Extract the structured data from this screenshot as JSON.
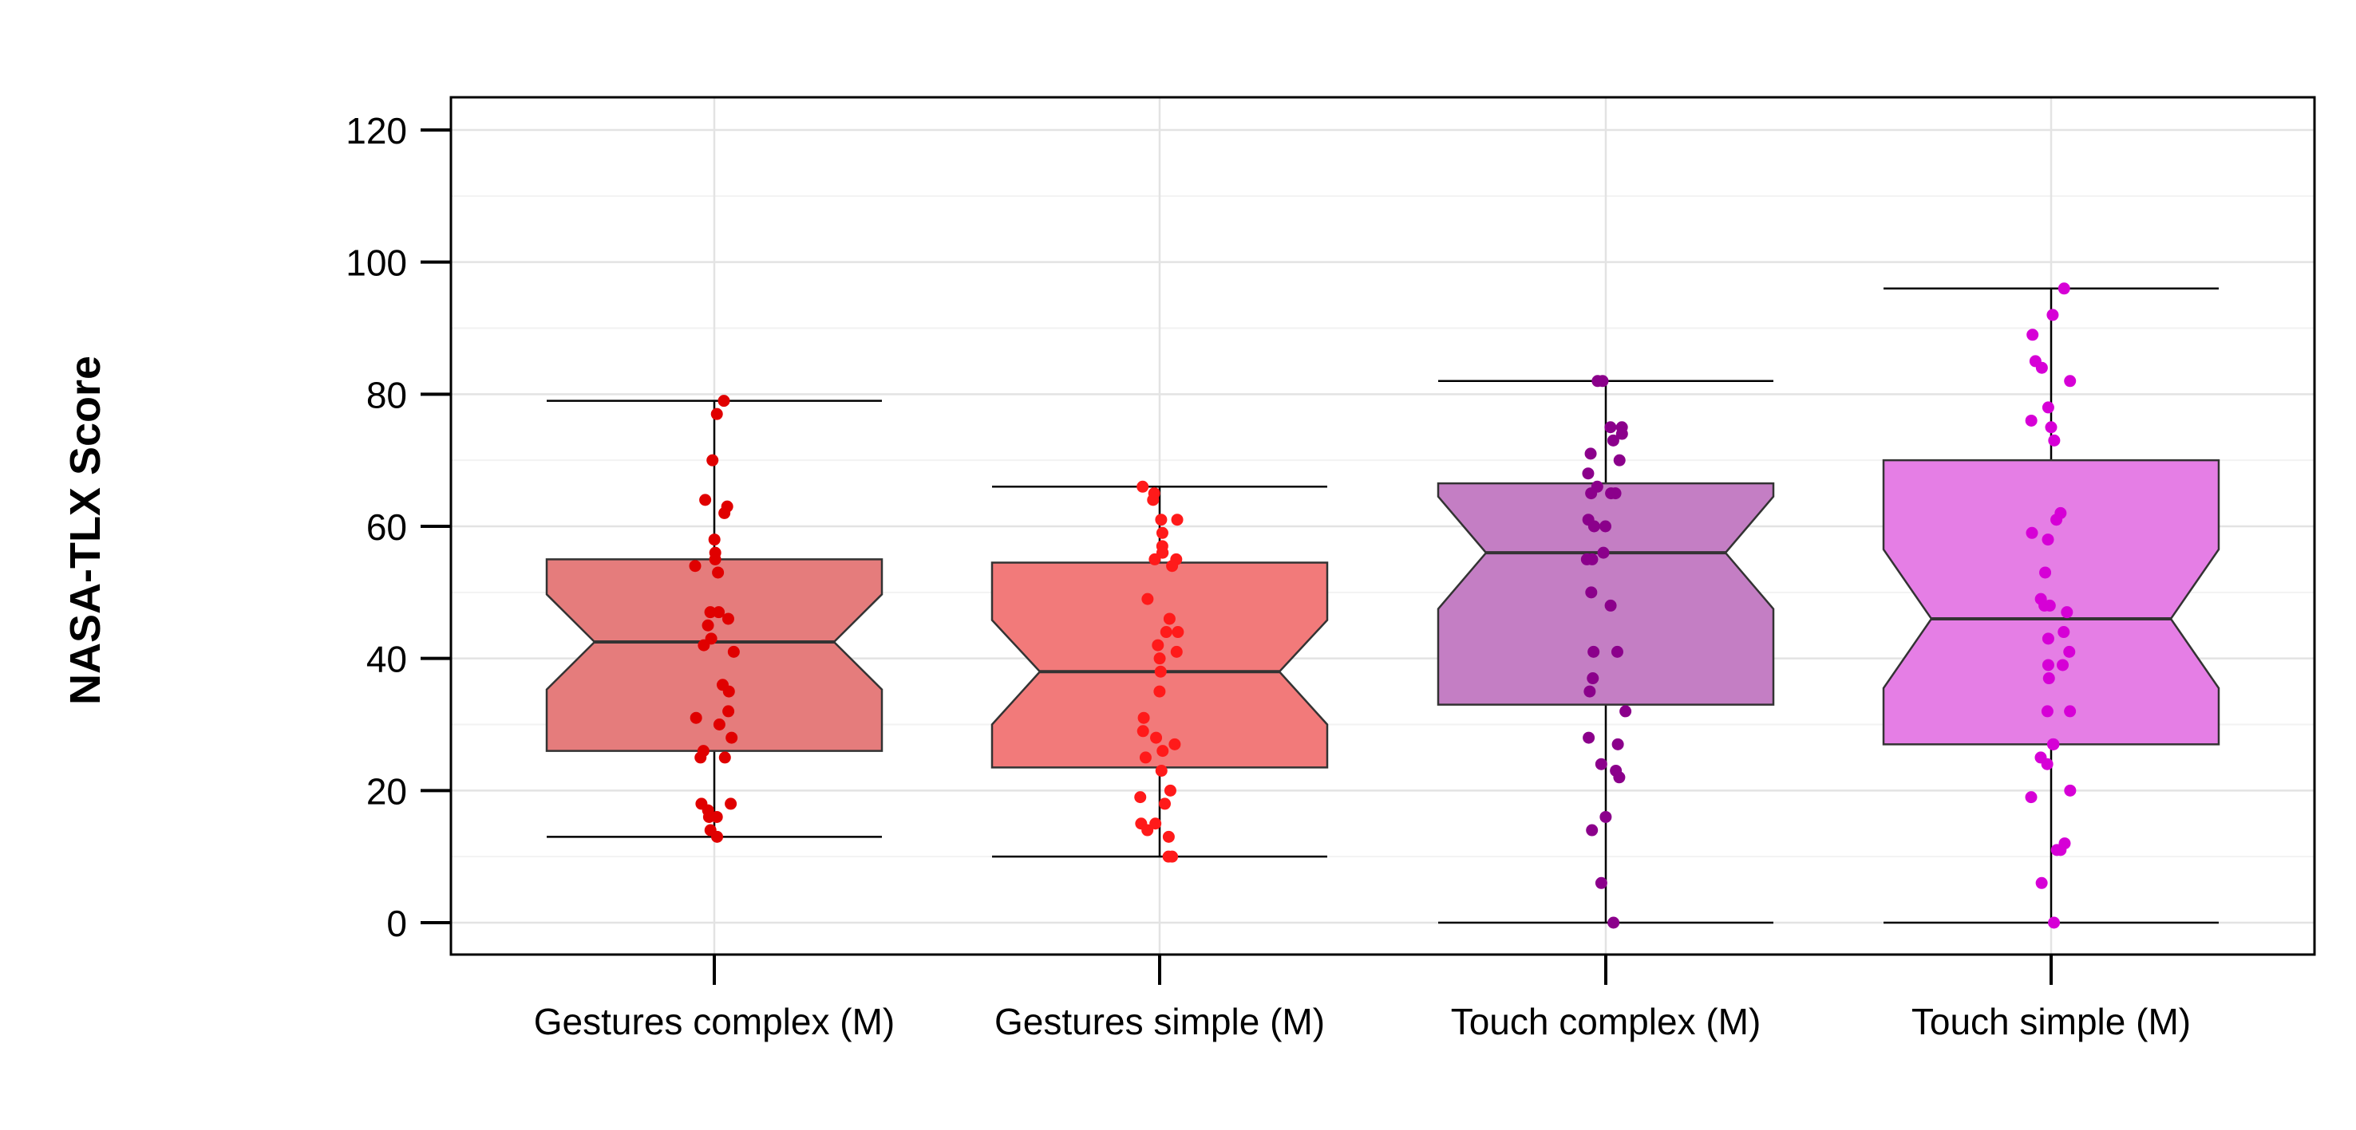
{
  "chart_data": {
    "type": "boxplot",
    "ylabel": "NASA-TLX Score",
    "ylim": [
      -5,
      125
    ],
    "yticks": [
      0,
      20,
      40,
      60,
      80,
      100,
      120
    ],
    "grid": true,
    "notched": true,
    "whiskers": "min-max",
    "categories": [
      "Gestures complex (M)",
      "Gestures simple (M)",
      "Touch complex (M)",
      "Touch simple (M)"
    ],
    "boxes": [
      {
        "name": "Gestures complex (M)",
        "min": 13,
        "q1": 26,
        "median": 42.5,
        "q3": 55,
        "max": 79,
        "notch_low": 35.3,
        "notch_high": 49.7,
        "fill": "#e57c7c",
        "point_color": "#e00000"
      },
      {
        "name": "Gestures simple (M)",
        "min": 10,
        "q1": 23.5,
        "median": 38,
        "q3": 54.5,
        "max": 66,
        "notch_low": 30,
        "notch_high": 45.8,
        "fill": "#f27a7a",
        "point_color": "#ff1a1a"
      },
      {
        "name": "Touch complex (M)",
        "min": 0,
        "q1": 33,
        "median": 56,
        "q3": 66.5,
        "max": 82,
        "notch_low": 47.5,
        "notch_high": 64.5,
        "fill": "#c47ec4",
        "point_color": "#8b008b"
      },
      {
        "name": "Touch simple (M)",
        "min": 0,
        "q1": 27,
        "median": 46,
        "q3": 70,
        "max": 96,
        "notch_low": 35.5,
        "notch_high": 56.5,
        "fill": "#e57ee5",
        "point_color": "#d600d6"
      }
    ],
    "points": [
      [
        79,
        77,
        70,
        64,
        63,
        62,
        58,
        56,
        55,
        54,
        53,
        47,
        47,
        46,
        45,
        43,
        42,
        41,
        36,
        35,
        32,
        31,
        30,
        28,
        26,
        25,
        25,
        18,
        18,
        17,
        16,
        16,
        14,
        13
      ],
      [
        66,
        65,
        64,
        61,
        61,
        59,
        57,
        56,
        56,
        55,
        55,
        54,
        49,
        46,
        44,
        44,
        42,
        41,
        40,
        38,
        35,
        31,
        29,
        28,
        27,
        26,
        25,
        23,
        20,
        19,
        18,
        15,
        15,
        14,
        13,
        10,
        10
      ],
      [
        82,
        82,
        75,
        75,
        74,
        73,
        71,
        70,
        68,
        66,
        65,
        65,
        65,
        61,
        60,
        60,
        56,
        55,
        55,
        50,
        48,
        41,
        41,
        37,
        35,
        32,
        28,
        27,
        24,
        23,
        22,
        16,
        14,
        6,
        0
      ],
      [
        96,
        92,
        89,
        85,
        84,
        82,
        78,
        76,
        75,
        73,
        62,
        61,
        59,
        58,
        53,
        49,
        48,
        48,
        47,
        44,
        43,
        41,
        39,
        39,
        37,
        32,
        32,
        27,
        27,
        25,
        24,
        20,
        19,
        12,
        11,
        11,
        6,
        0
      ]
    ]
  }
}
